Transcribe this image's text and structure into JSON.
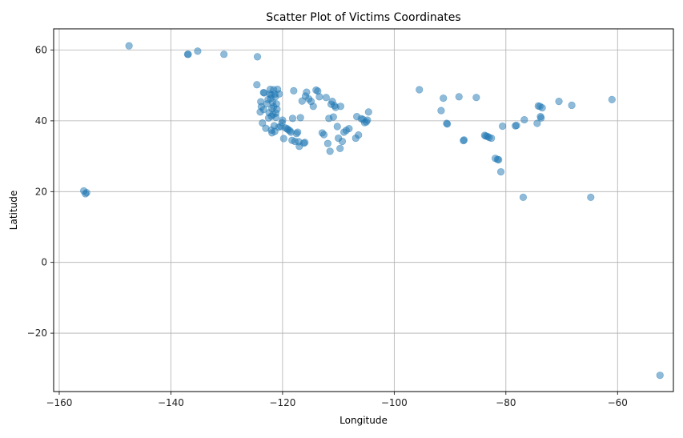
{
  "chart_data": {
    "type": "scatter",
    "title": "Scatter Plot of Victims Coordinates",
    "xlabel": "Longitude",
    "ylabel": "Latitude",
    "xlim": [
      -161,
      -50
    ],
    "ylim": [
      -36.5,
      66
    ],
    "xticks": [
      -160,
      -140,
      -120,
      -100,
      -80,
      -60
    ],
    "yticks": [
      -20,
      0,
      20,
      40,
      60
    ],
    "xtick_labels": [
      "−160",
      "−140",
      "−120",
      "−100",
      "−80",
      "−60"
    ],
    "ytick_labels": [
      "−20",
      "0",
      "20",
      "40",
      "60"
    ],
    "grid": true,
    "marker_color": "#1f77b4",
    "marker_alpha": 0.5,
    "points": [
      [
        -155.6,
        20.2
      ],
      [
        -155.1,
        19.7
      ],
      [
        -155.3,
        19.4
      ],
      [
        -147.5,
        61.2
      ],
      [
        -137.0,
        58.8
      ],
      [
        -136.9,
        58.8
      ],
      [
        -135.2,
        59.7
      ],
      [
        -130.5,
        58.8
      ],
      [
        -124.5,
        58.1
      ],
      [
        -124.6,
        50.2
      ],
      [
        -123.9,
        45.4
      ],
      [
        -123.8,
        44.0
      ],
      [
        -124.0,
        42.5
      ],
      [
        -123.4,
        43.2
      ],
      [
        -123.6,
        39.4
      ],
      [
        -123.3,
        47.9
      ],
      [
        -123.4,
        48.0
      ],
      [
        -123.0,
        37.9
      ],
      [
        -122.8,
        44.8
      ],
      [
        -122.6,
        46.0
      ],
      [
        -122.5,
        40.8
      ],
      [
        -122.3,
        47.6
      ],
      [
        -122.2,
        48.9
      ],
      [
        -122.0,
        47.3
      ],
      [
        -121.9,
        43.5
      ],
      [
        -121.8,
        45.2
      ],
      [
        -121.7,
        41.8
      ],
      [
        -121.6,
        44.0
      ],
      [
        -121.5,
        38.6
      ],
      [
        -121.9,
        36.6
      ],
      [
        -122.0,
        37.4
      ],
      [
        -122.1,
        46.3
      ],
      [
        -122.4,
        42.3
      ],
      [
        -121.6,
        48.8
      ],
      [
        -121.4,
        47.5
      ],
      [
        -121.3,
        46.8
      ],
      [
        -121.2,
        42.2
      ],
      [
        -121.1,
        44.8
      ],
      [
        -120.9,
        48.9
      ],
      [
        -120.6,
        47.6
      ],
      [
        -121.0,
        43.3
      ],
      [
        -121.2,
        41.0
      ],
      [
        -122.0,
        41.3
      ],
      [
        -121.4,
        37.0
      ],
      [
        -120.7,
        38.2
      ],
      [
        -120.3,
        38.4
      ],
      [
        -120.1,
        39.5
      ],
      [
        -120.0,
        40.2
      ],
      [
        -119.8,
        35.0
      ],
      [
        -119.5,
        38.0
      ],
      [
        -119.2,
        37.8
      ],
      [
        -119.0,
        37.5
      ],
      [
        -118.7,
        37.2
      ],
      [
        -118.5,
        36.8
      ],
      [
        -118.2,
        40.7
      ],
      [
        -118.0,
        48.5
      ],
      [
        -118.3,
        34.5
      ],
      [
        -117.8,
        34.2
      ],
      [
        -117.5,
        36.4
      ],
      [
        -117.3,
        36.8
      ],
      [
        -117.1,
        34.1
      ],
      [
        -117.0,
        32.8
      ],
      [
        -116.8,
        40.9
      ],
      [
        -116.5,
        45.6
      ],
      [
        -116.2,
        33.7
      ],
      [
        -116.0,
        33.9
      ],
      [
        -115.9,
        47.0
      ],
      [
        -115.7,
        48.1
      ],
      [
        -115.3,
        46.2
      ],
      [
        -114.9,
        45.5
      ],
      [
        -114.5,
        44.1
      ],
      [
        -114.0,
        48.7
      ],
      [
        -113.7,
        48.4
      ],
      [
        -113.4,
        46.8
      ],
      [
        -112.9,
        36.6
      ],
      [
        -112.6,
        36.1
      ],
      [
        -112.2,
        46.6
      ],
      [
        -111.9,
        33.6
      ],
      [
        -111.7,
        40.7
      ],
      [
        -111.5,
        31.4
      ],
      [
        -111.3,
        44.7
      ],
      [
        -111.1,
        45.5
      ],
      [
        -110.9,
        41.1
      ],
      [
        -110.7,
        44.3
      ],
      [
        -110.5,
        43.8
      ],
      [
        -110.2,
        38.4
      ],
      [
        -110.0,
        35.1
      ],
      [
        -109.7,
        32.2
      ],
      [
        -109.6,
        44.1
      ],
      [
        -109.3,
        34.2
      ],
      [
        -109.0,
        36.8
      ],
      [
        -108.6,
        37.3
      ],
      [
        -108.1,
        37.8
      ],
      [
        -106.9,
        35.1
      ],
      [
        -106.7,
        41.2
      ],
      [
        -106.4,
        36.0
      ],
      [
        -105.9,
        40.6
      ],
      [
        -105.6,
        40.4
      ],
      [
        -105.3,
        39.5
      ],
      [
        -105.0,
        39.7
      ],
      [
        -104.8,
        40.2
      ],
      [
        -104.6,
        42.5
      ],
      [
        -95.5,
        48.8
      ],
      [
        -91.6,
        42.9
      ],
      [
        -91.2,
        46.4
      ],
      [
        -90.6,
        39.3
      ],
      [
        -90.5,
        39.1
      ],
      [
        -88.4,
        46.8
      ],
      [
        -87.6,
        34.4
      ],
      [
        -87.5,
        34.6
      ],
      [
        -85.3,
        46.6
      ],
      [
        -83.8,
        35.9
      ],
      [
        -83.6,
        35.7
      ],
      [
        -83.3,
        35.6
      ],
      [
        -83.0,
        35.3
      ],
      [
        -82.6,
        35.1
      ],
      [
        -81.9,
        29.4
      ],
      [
        -81.5,
        29.1
      ],
      [
        -81.3,
        29.0
      ],
      [
        -80.9,
        25.6
      ],
      [
        -80.6,
        38.5
      ],
      [
        -78.3,
        38.6
      ],
      [
        -78.1,
        38.7
      ],
      [
        -76.9,
        18.4
      ],
      [
        -76.7,
        40.3
      ],
      [
        -74.4,
        39.3
      ],
      [
        -74.2,
        44.2
      ],
      [
        -73.9,
        44.1
      ],
      [
        -73.8,
        41.2
      ],
      [
        -73.7,
        40.8
      ],
      [
        -73.5,
        43.7
      ],
      [
        -70.5,
        45.5
      ],
      [
        -68.2,
        44.4
      ],
      [
        -64.8,
        18.4
      ],
      [
        -61.0,
        46.0
      ],
      [
        -52.4,
        -31.9
      ]
    ]
  }
}
